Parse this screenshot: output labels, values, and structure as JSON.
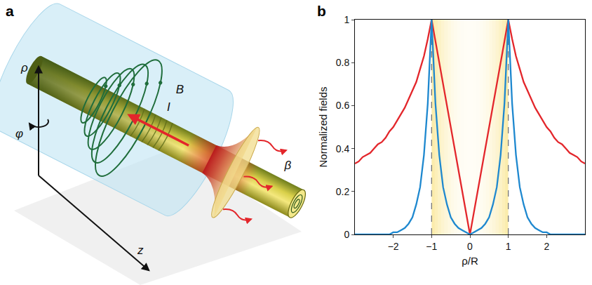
{
  "panel_labels": [
    "a",
    "b"
  ],
  "diagram": {
    "labels": {
      "field": "B",
      "current": "I",
      "radial": "ρ",
      "azimuthal": "φ",
      "axial": "z",
      "decay": "β"
    }
  },
  "chart_data": {
    "type": "line",
    "xlabel": "ρ/R",
    "ylabel": "Normalized fields",
    "x": [
      -3,
      -2.9,
      -2.8,
      -2.7,
      -2.6,
      -2.5,
      -2.4,
      -2.3,
      -2.2,
      -2.1,
      -2,
      -1.9,
      -1.8,
      -1.7,
      -1.6,
      -1.5,
      -1.4,
      -1.3,
      -1.2,
      -1.1,
      -1,
      -0.9,
      -0.8,
      -0.7,
      -0.6,
      -0.5,
      -0.4,
      -0.3,
      -0.2,
      -0.1,
      0,
      0.1,
      0.2,
      0.3,
      0.4,
      0.5,
      0.6,
      0.7,
      0.8,
      0.9,
      1,
      1.1,
      1.2,
      1.3,
      1.4,
      1.5,
      1.6,
      1.7,
      1.8,
      1.9,
      2,
      2.1,
      2.2,
      2.3,
      2.4,
      2.5,
      2.6,
      2.7,
      2.8,
      2.9,
      3
    ],
    "series": [
      {
        "color": "#e3262b",
        "values": [
          0.33,
          0.34,
          0.36,
          0.37,
          0.38,
          0.4,
          0.42,
          0.43,
          0.45,
          0.48,
          0.5,
          0.53,
          0.56,
          0.59,
          0.63,
          0.67,
          0.71,
          0.77,
          0.83,
          0.91,
          1,
          0.9,
          0.8,
          0.7,
          0.6,
          0.5,
          0.4,
          0.3,
          0.2,
          0.1,
          0,
          0.1,
          0.2,
          0.3,
          0.4,
          0.5,
          0.6,
          0.7,
          0.8,
          0.9,
          1,
          0.91,
          0.83,
          0.77,
          0.71,
          0.67,
          0.63,
          0.59,
          0.56,
          0.53,
          0.5,
          0.48,
          0.45,
          0.43,
          0.42,
          0.4,
          0.38,
          0.37,
          0.36,
          0.34,
          0.33
        ]
      },
      {
        "color": "#1e88cf",
        "values": [
          0,
          0,
          0,
          0,
          0,
          0,
          0,
          0,
          0,
          0,
          0.01,
          0.01,
          0.02,
          0.03,
          0.05,
          0.08,
          0.14,
          0.22,
          0.37,
          0.61,
          1,
          0.61,
          0.37,
          0.22,
          0.14,
          0.08,
          0.05,
          0.03,
          0.02,
          0.01,
          0,
          0.01,
          0.02,
          0.03,
          0.05,
          0.08,
          0.14,
          0.22,
          0.37,
          0.61,
          1,
          0.61,
          0.37,
          0.22,
          0.14,
          0.08,
          0.05,
          0.03,
          0.02,
          0.01,
          0.01,
          0,
          0,
          0,
          0,
          0,
          0,
          0,
          0,
          0,
          0
        ]
      }
    ],
    "shaded_x": [
      -1,
      1
    ],
    "xlim": [
      -3,
      3
    ],
    "ylim": [
      0,
      1
    ],
    "xticks": [
      -2,
      -1,
      0,
      1,
      2
    ],
    "yticks": [
      0,
      0.2,
      0.4,
      0.6,
      0.8,
      1
    ],
    "grid": false
  }
}
